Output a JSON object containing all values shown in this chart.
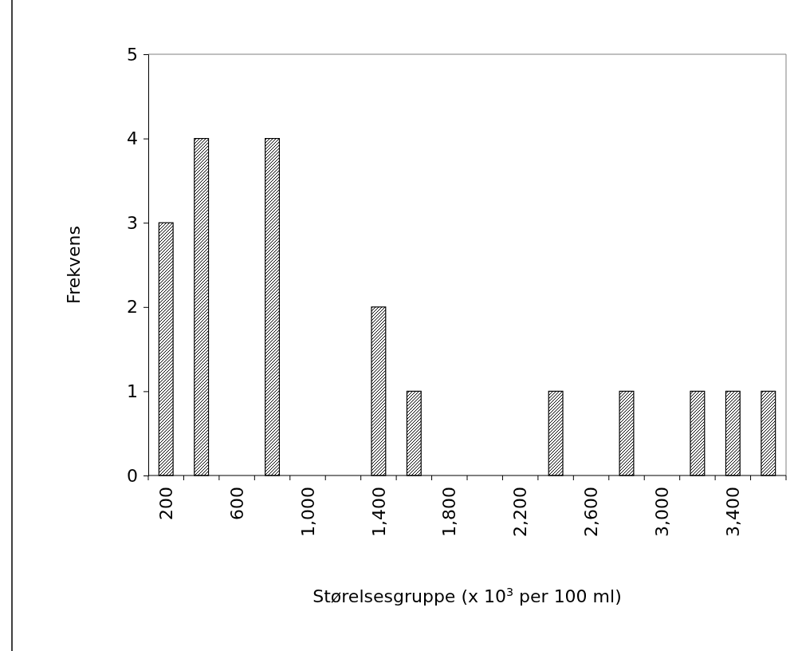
{
  "chart_data": {
    "type": "bar",
    "xlabel": "Størelsesgruppe (x 10$^{3}$ per 100 ml)",
    "ylabel": "Frekvens",
    "categories": [
      "200",
      null,
      "600",
      null,
      "1,000",
      null,
      "1,400",
      null,
      "1,800",
      null,
      "2,200",
      null,
      "2,600",
      null,
      "3,000",
      null,
      "3,400",
      null
    ],
    "values": [
      3,
      4,
      0,
      4,
      0,
      0,
      2,
      1,
      0,
      0,
      0,
      1,
      0,
      1,
      0,
      1,
      1,
      1
    ],
    "color": "#000000",
    "ylim": [
      0,
      5
    ],
    "yticks": [
      0,
      1,
      2,
      3,
      4,
      5
    ],
    "grid": false
  }
}
